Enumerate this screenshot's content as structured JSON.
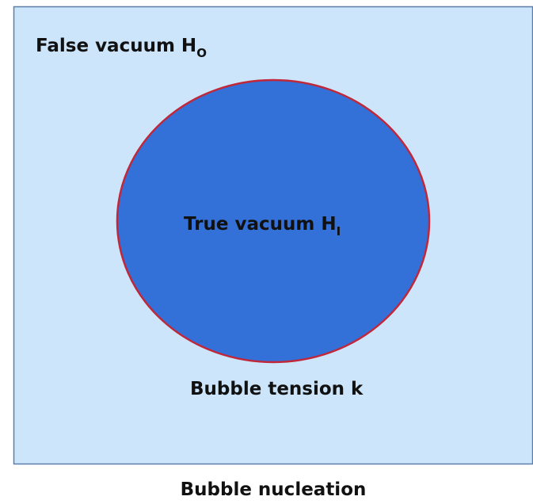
{
  "outer": {
    "label": "False vacuum H",
    "subscript": "O"
  },
  "bubble": {
    "label": "True vacuum H",
    "subscript": "I",
    "boundary_label": "Bubble tension k"
  },
  "caption": "Bubble nucleation"
}
